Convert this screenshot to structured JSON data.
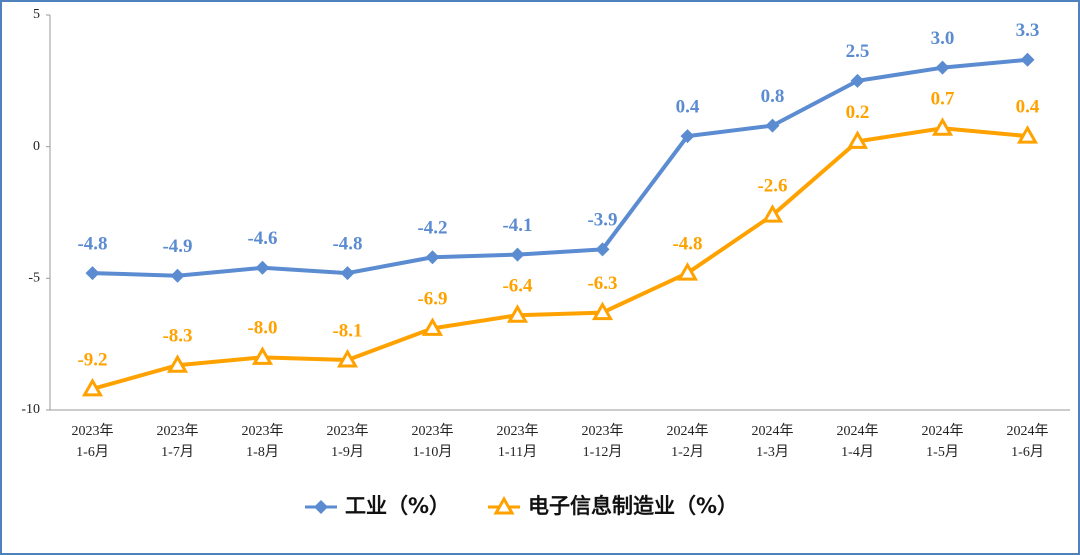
{
  "chart_data": {
    "type": "line",
    "categories": [
      "2023年\n1-6月",
      "2023年\n1-7月",
      "2023年\n1-8月",
      "2023年\n1-9月",
      "2023年\n1-10月",
      "2023年\n1-11月",
      "2023年\n1-12月",
      "2024年\n1-2月",
      "2024年\n1-3月",
      "2024年\n1-4月",
      "2024年\n1-5月",
      "2024年\n1-6月"
    ],
    "series": [
      {
        "name": "工业（%）",
        "color": "#5b8bd0",
        "marker": "diamond",
        "values": [
          -4.8,
          -4.9,
          -4.6,
          -4.8,
          -4.2,
          -4.1,
          -3.9,
          0.4,
          0.8,
          2.5,
          3.0,
          3.3
        ],
        "value_labels": [
          "-4.8",
          "-4.9",
          "-4.6",
          "-4.8",
          "-4.2",
          "-4.1",
          "-3.9",
          "0.4",
          "0.8",
          "2.5",
          "3.0",
          "3.3"
        ]
      },
      {
        "name": "电子信息制造业（%）",
        "color": "#ffa200",
        "marker": "triangle",
        "values": [
          -9.2,
          -8.3,
          -8.0,
          -8.1,
          -6.9,
          -6.4,
          -6.3,
          -4.8,
          -2.6,
          0.2,
          0.7,
          0.4
        ],
        "value_labels": [
          "-9.2",
          "-8.3",
          "-8.0",
          "-8.1",
          "-6.9",
          "-6.4",
          "-6.3",
          "-4.8",
          "-2.6",
          "0.2",
          "0.7",
          "0.4"
        ]
      }
    ],
    "ylim": [
      -10,
      5
    ],
    "yticks": [
      -10,
      -5,
      0,
      5
    ],
    "grid": false
  }
}
